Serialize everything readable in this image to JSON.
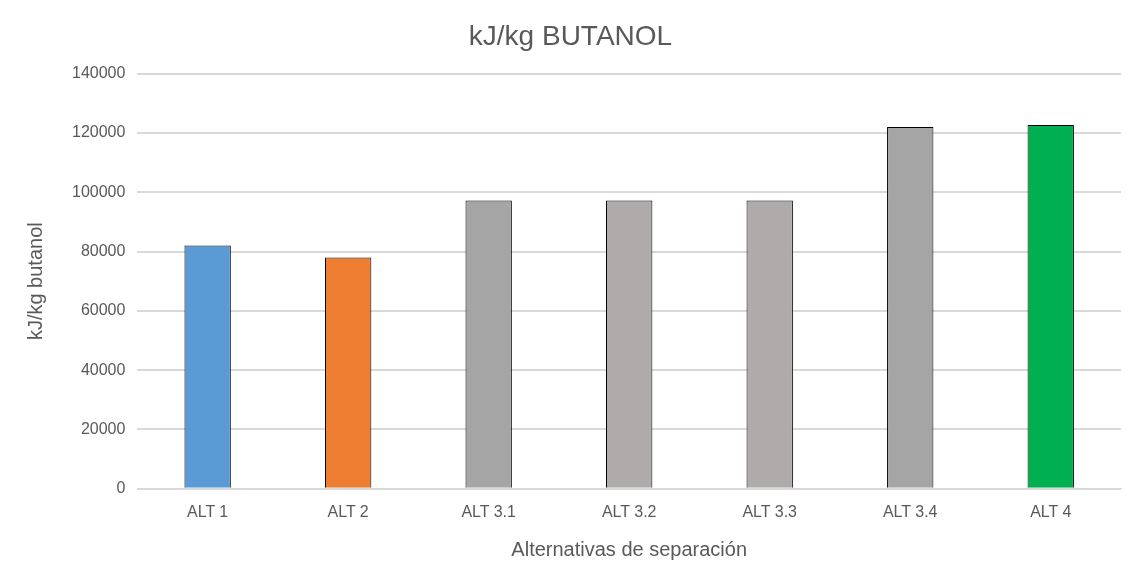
{
  "chart_data": {
    "type": "bar",
    "title": "kJ/kg BUTANOL",
    "xlabel": "Alternativas de separación",
    "ylabel": "kJ/kg butanol",
    "categories": [
      "ALT 1",
      "ALT 2",
      "ALT 3.1",
      "ALT 3.2",
      "ALT 3.3",
      "ALT 3.4",
      "ALT 4"
    ],
    "values": [
      82000,
      78000,
      97200,
      97200,
      97200,
      122000,
      122700
    ],
    "colors": [
      "#5b9bd5",
      "#ed7d31",
      "#a5a5a5",
      "#afabab",
      "#afabab",
      "#a5a5a5",
      "#00b050"
    ],
    "ylim": [
      0,
      140000
    ],
    "yticks": [
      0,
      20000,
      40000,
      60000,
      80000,
      100000,
      120000,
      140000
    ],
    "grid": "y",
    "legend": false
  }
}
